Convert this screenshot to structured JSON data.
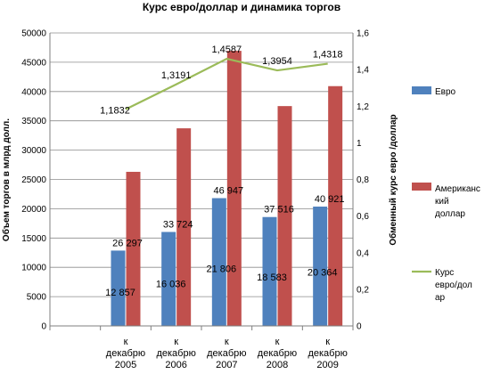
{
  "chart_data": {
    "type": "bar",
    "title": "Курс евро/доллар и динамика торгов",
    "ylabel": "Объем торгов в млрд долл.",
    "y2label": "Обменный курс евро /доллар",
    "categories": [
      "к декабрю 2005",
      "к декабрю 2006",
      "к декабрю 2007",
      "к декабрю 2008",
      "к декабрю 2009"
    ],
    "category_lines": [
      [
        "к",
        "декабрю",
        "2005"
      ],
      [
        "к",
        "декабрю",
        "2006"
      ],
      [
        "к",
        "декабрю",
        "2007"
      ],
      [
        "к",
        "декабрю",
        "2008"
      ],
      [
        "к",
        "декабрю",
        "2009"
      ]
    ],
    "ylim": [
      0,
      50000
    ],
    "yticks": [
      "0",
      "5000",
      "10000",
      "15000",
      "20000",
      "25000",
      "30000",
      "35000",
      "40000",
      "45000",
      "50000"
    ],
    "y2lim": [
      0,
      1.6
    ],
    "y2ticks": [
      "0",
      "0,2",
      "0,4",
      "0,6",
      "0,8",
      "1",
      "1,2",
      "1,4",
      "1,6"
    ],
    "grid": true,
    "legend_position": "right",
    "series": [
      {
        "name": "Евро",
        "legend_lines": [
          "Евро"
        ],
        "kind": "bar",
        "color": "#4F81BD",
        "values": [
          12857,
          16036,
          21806,
          18583,
          20364
        ],
        "labels": [
          "12 857",
          "16 036",
          "21 806",
          "18 583",
          "20 364"
        ]
      },
      {
        "name": "Американский доллар",
        "legend_lines": [
          "Американс",
          "кий",
          "доллар"
        ],
        "kind": "bar",
        "color": "#C0504D",
        "values": [
          26297,
          33724,
          46947,
          37516,
          40921
        ],
        "labels": [
          "26 297",
          "33 724",
          "46 947",
          "37 516",
          "40 921"
        ]
      },
      {
        "name": "Курс евро/доллар",
        "legend_lines": [
          "Курс",
          "евро/дол",
          "ар"
        ],
        "kind": "line",
        "axis": "secondary",
        "color": "#9BBB59",
        "values": [
          1.1832,
          1.3191,
          1.4587,
          1.3954,
          1.4318
        ],
        "labels": [
          "1,1832",
          "1,3191",
          "1,4587",
          "1,3954",
          "1,4318"
        ]
      }
    ]
  }
}
